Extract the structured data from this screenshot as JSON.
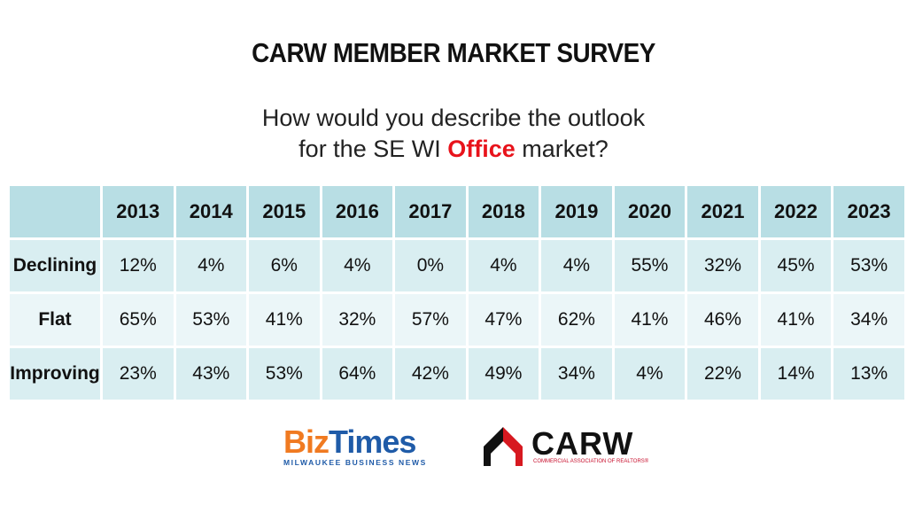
{
  "header": {
    "title": "CARW MEMBER MARKET SURVEY",
    "question_line1": "How would you describe the outlook",
    "question_line2_before": "for the SE WI ",
    "question_line2_highlight": "Office",
    "question_line2_after": " market?"
  },
  "table": {
    "columns": [
      "2013",
      "2014",
      "2015",
      "2016",
      "2017",
      "2018",
      "2019",
      "2020",
      "2021",
      "2022",
      "2023"
    ],
    "rows": [
      {
        "label": "Declining",
        "cells": [
          "12%",
          "4%",
          "6%",
          "4%",
          "0%",
          "4%",
          "4%",
          "55%",
          "32%",
          "45%",
          "53%"
        ]
      },
      {
        "label": "Flat",
        "cells": [
          "65%",
          "53%",
          "41%",
          "32%",
          "57%",
          "47%",
          "62%",
          "41%",
          "46%",
          "41%",
          "34%"
        ]
      },
      {
        "label": "Improving",
        "cells": [
          "23%",
          "43%",
          "53%",
          "64%",
          "42%",
          "49%",
          "34%",
          "4%",
          "22%",
          "14%",
          "13%"
        ]
      }
    ]
  },
  "logos": {
    "biztimes_biz": "Biz",
    "biztimes_times": "Times",
    "biztimes_tagline": "MILWAUKEE BUSINESS NEWS",
    "carw_name": "CARW",
    "carw_tagline": "COMMERCIAL ASSOCIATION OF REALTORS®"
  }
}
